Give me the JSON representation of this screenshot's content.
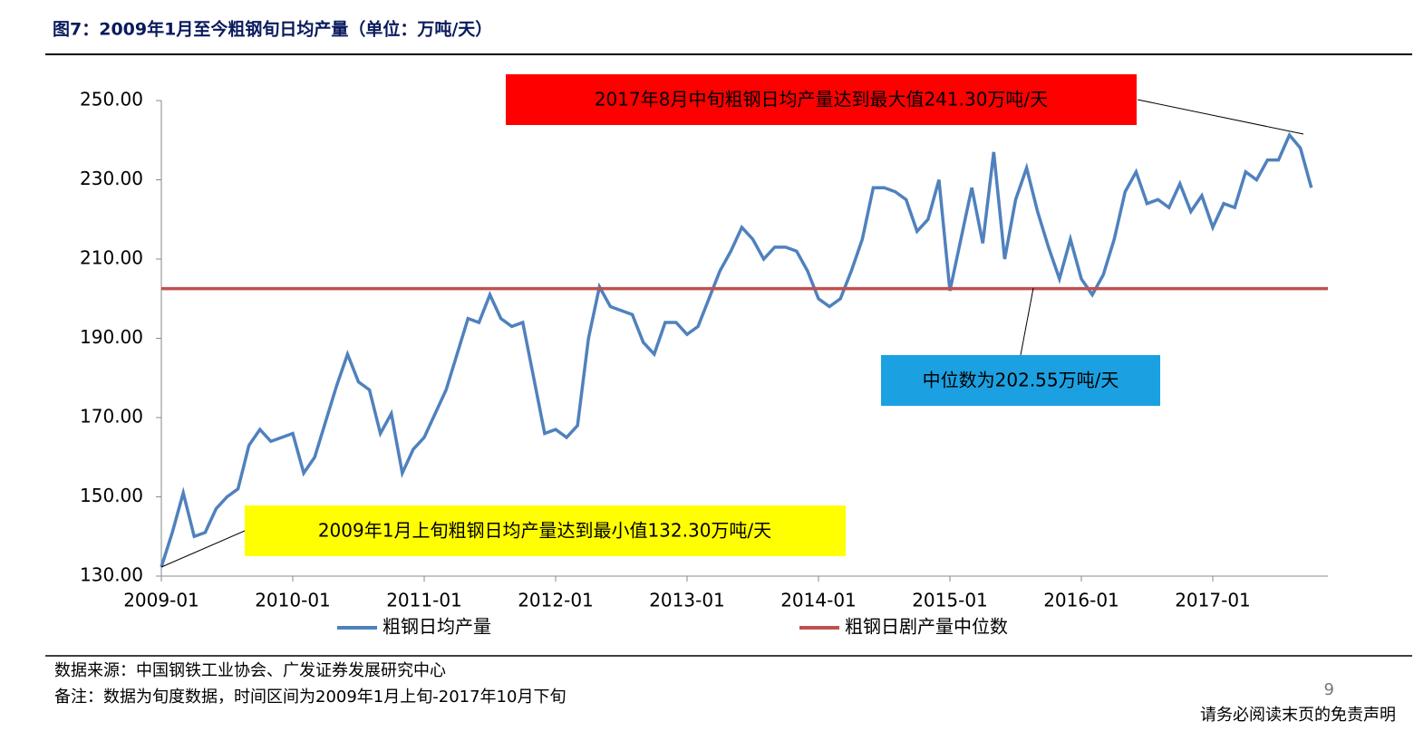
{
  "header": {
    "title": "图7：2009年1月至今粗钢旬日均产量（单位：万吨/天）"
  },
  "chart_data": {
    "type": "line",
    "x": [
      "2009-01",
      "2009-02",
      "2009-03",
      "2009-04",
      "2009-05",
      "2009-06",
      "2009-07",
      "2009-08",
      "2009-09",
      "2009-10",
      "2009-11",
      "2009-12",
      "2010-01",
      "2010-02",
      "2010-03",
      "2010-04",
      "2010-05",
      "2010-06",
      "2010-07",
      "2010-08",
      "2010-09",
      "2010-10",
      "2010-11",
      "2010-12",
      "2011-01",
      "2011-02",
      "2011-03",
      "2011-04",
      "2011-05",
      "2011-06",
      "2011-07",
      "2011-08",
      "2011-09",
      "2011-10",
      "2011-11",
      "2011-12",
      "2012-01",
      "2012-02",
      "2012-03",
      "2012-04",
      "2012-05",
      "2012-06",
      "2012-07",
      "2012-08",
      "2012-09",
      "2012-10",
      "2012-11",
      "2012-12",
      "2013-01",
      "2013-02",
      "2013-03",
      "2013-04",
      "2013-05",
      "2013-06",
      "2013-07",
      "2013-08",
      "2013-09",
      "2013-10",
      "2013-11",
      "2013-12",
      "2014-01",
      "2014-02",
      "2014-03",
      "2014-04",
      "2014-05",
      "2014-06",
      "2014-07",
      "2014-08",
      "2014-09",
      "2014-10",
      "2014-11",
      "2014-12",
      "2015-01",
      "2015-02",
      "2015-03",
      "2015-04",
      "2015-05",
      "2015-06",
      "2015-07",
      "2015-08",
      "2015-09",
      "2015-10",
      "2015-11",
      "2015-12",
      "2016-01",
      "2016-02",
      "2016-03",
      "2016-04",
      "2016-05",
      "2016-06",
      "2016-07",
      "2016-08",
      "2016-09",
      "2016-10",
      "2016-11",
      "2016-12",
      "2017-01",
      "2017-02",
      "2017-03",
      "2017-04",
      "2017-05",
      "2017-06",
      "2017-07",
      "2017-08",
      "2017-09",
      "2017-10"
    ],
    "series": [
      {
        "name": "粗钢日均产量",
        "color": "#4f81bd",
        "values": [
          132.3,
          141,
          151,
          140,
          141,
          147,
          150,
          152,
          163,
          167,
          164,
          165,
          166,
          156,
          160,
          169,
          178,
          186,
          179,
          177,
          166,
          171,
          156,
          162,
          165,
          171,
          177,
          186,
          195,
          194,
          201,
          195,
          193,
          194,
          180,
          166,
          167,
          165,
          168,
          190,
          203,
          198,
          197,
          196,
          189,
          186,
          194,
          194,
          191,
          193,
          200,
          207,
          212,
          218,
          215,
          210,
          213,
          213,
          212,
          207,
          200,
          198,
          200,
          207,
          215,
          228,
          228,
          227,
          225,
          217,
          220,
          230,
          202,
          215,
          228,
          214,
          237,
          210,
          225,
          233,
          222,
          213,
          205,
          215,
          205,
          201,
          206,
          215,
          227,
          232,
          224,
          225,
          223,
          229,
          222,
          226,
          218,
          224,
          223,
          232,
          230,
          235,
          235,
          241.3,
          238,
          228
        ]
      },
      {
        "name": "粗钢日剧产量中位数",
        "color": "#c0504d",
        "value": 202.55
      }
    ],
    "ylim": [
      130,
      250
    ],
    "yticks": [
      {
        "value": 130,
        "label": "130.00"
      },
      {
        "value": 150,
        "label": "150.00"
      },
      {
        "value": 170,
        "label": "170.00"
      },
      {
        "value": 190,
        "label": "190.00"
      },
      {
        "value": 210,
        "label": "210.00"
      },
      {
        "value": 230,
        "label": "230.00"
      },
      {
        "value": 250,
        "label": "250.00"
      }
    ],
    "xticks": [
      "2009-01",
      "2010-01",
      "2011-01",
      "2012-01",
      "2013-01",
      "2014-01",
      "2015-01",
      "2016-01",
      "2017-01"
    ],
    "annotations": [
      "2017年8月中旬粗钢日均产量达到最大值241.30万吨/天",
      "中位数为202.55万吨/天",
      "2009年1月上旬粗钢日均产量达到最小值132.30万吨/天"
    ]
  },
  "footer": {
    "source": "数据来源：中国钢铁工业协会、广发证券发展研究中心",
    "note": "备注：数据为旬度数据，时间区间为2009年1月上旬-2017年10月下旬",
    "page": "9",
    "disclaimer": "请务必阅读末页的免责声明"
  }
}
